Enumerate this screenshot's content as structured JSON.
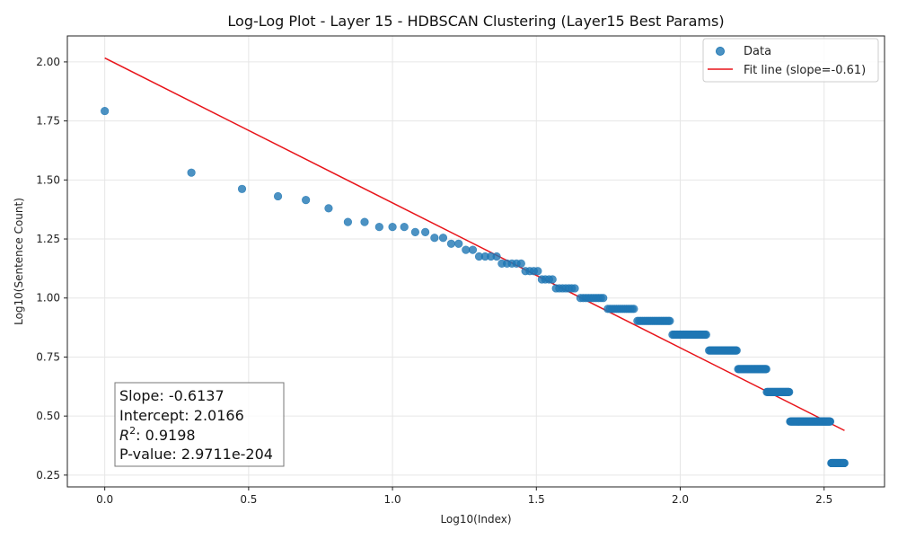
{
  "chart_data": {
    "type": "scatter",
    "title": "Log-Log Plot - Layer 15 - HDBSCAN Clustering (Layer15 Best Params)",
    "xlabel": "Log10(Index)",
    "ylabel": "Log10(Sentence Count)",
    "xlim": [
      -0.13,
      2.71
    ],
    "ylim": [
      0.2,
      2.11
    ],
    "xticks": [
      0.0,
      0.5,
      1.0,
      1.5,
      2.0,
      2.5
    ],
    "xtick_labels": [
      "0.0",
      "0.5",
      "1.0",
      "1.5",
      "2.0",
      "2.5"
    ],
    "yticks": [
      0.25,
      0.5,
      0.75,
      1.0,
      1.25,
      1.5,
      1.75,
      2.0
    ],
    "ytick_labels": [
      "0.25",
      "0.50",
      "0.75",
      "1.00",
      "1.25",
      "1.50",
      "1.75",
      "2.00"
    ],
    "grid": true,
    "legend_position": "top-right",
    "colors": {
      "data": "#1f77b4",
      "fit": "#e8141a"
    },
    "series": [
      {
        "name": "Data",
        "kind": "scatter",
        "points": [
          [
            0.0,
            1.792
          ],
          [
            0.301,
            1.531
          ],
          [
            0.477,
            1.462
          ],
          [
            0.602,
            1.431
          ],
          [
            0.699,
            1.415
          ],
          [
            0.778,
            1.38
          ],
          [
            0.845,
            1.322
          ],
          [
            0.903,
            1.322
          ],
          [
            0.954,
            1.301
          ],
          [
            1.0,
            1.301
          ],
          [
            1.041,
            1.301
          ],
          [
            1.079,
            1.279
          ],
          [
            1.114,
            1.279
          ],
          [
            1.146,
            1.255
          ],
          [
            1.176,
            1.255
          ],
          [
            1.204,
            1.23
          ],
          [
            1.23,
            1.23
          ],
          [
            1.255,
            1.204
          ],
          [
            1.279,
            1.204
          ],
          [
            1.301,
            1.176
          ],
          [
            1.322,
            1.176
          ],
          [
            1.342,
            1.176
          ],
          [
            1.362,
            1.176
          ],
          [
            1.38,
            1.146
          ],
          [
            1.398,
            1.146
          ],
          [
            1.415,
            1.146
          ],
          [
            1.431,
            1.146
          ],
          [
            1.447,
            1.146
          ],
          [
            1.462,
            1.114
          ],
          [
            1.477,
            1.114
          ],
          [
            1.491,
            1.114
          ],
          [
            1.505,
            1.114
          ],
          [
            1.519,
            1.079
          ],
          [
            1.531,
            1.079
          ],
          [
            1.544,
            1.079
          ],
          [
            1.556,
            1.079
          ]
        ],
        "steps": [
          {
            "y": 1.041,
            "x_start": 1.568,
            "x_end": 1.643
          },
          {
            "y": 1.0,
            "x_start": 1.653,
            "x_end": 1.74
          },
          {
            "y": 0.954,
            "x_start": 1.748,
            "x_end": 1.845
          },
          {
            "y": 0.903,
            "x_start": 1.851,
            "x_end": 1.968
          },
          {
            "y": 0.845,
            "x_start": 1.973,
            "x_end": 2.093
          },
          {
            "y": 0.778,
            "x_start": 2.097,
            "x_end": 2.196
          },
          {
            "y": 0.699,
            "x_start": 2.199,
            "x_end": 2.299
          },
          {
            "y": 0.602,
            "x_start": 2.301,
            "x_end": 2.38
          },
          {
            "y": 0.477,
            "x_start": 2.382,
            "x_end": 2.522
          },
          {
            "y": 0.301,
            "x_start": 2.524,
            "x_end": 2.571
          }
        ]
      },
      {
        "name": "Fit line (slope=-0.61)",
        "kind": "line",
        "slope": -0.6137,
        "intercept": 2.0166,
        "x_range": [
          0.0,
          2.571
        ]
      }
    ],
    "stats_box": [
      {
        "label": "Slope",
        "value": "-0.6137"
      },
      {
        "label": "Intercept",
        "value": "2.0166"
      },
      {
        "label": "R",
        "sup": "2",
        "value": "0.9198"
      },
      {
        "label": "P-value",
        "value": "2.9711e-204"
      }
    ]
  }
}
